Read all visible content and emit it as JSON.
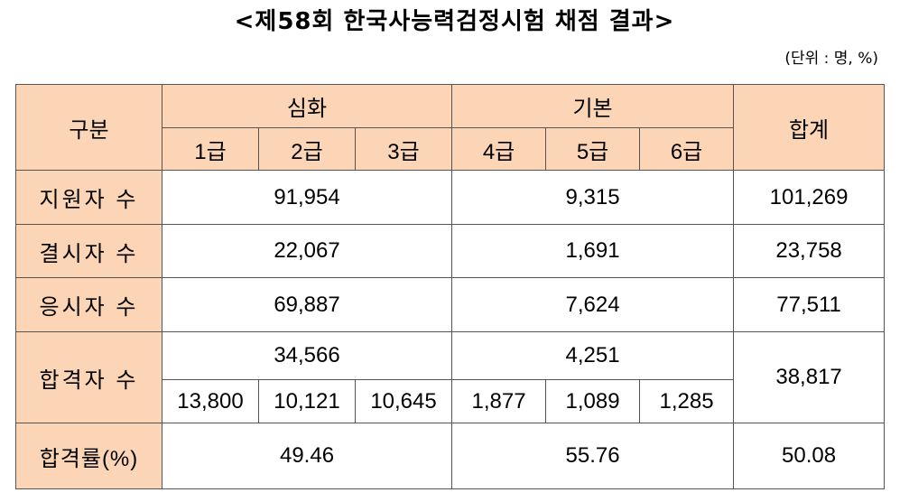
{
  "title": "<제58회 한국사능력검정시험 채점 결과>",
  "unit_note": "(단위 : 명, %)",
  "table": {
    "header": {
      "category": "구분",
      "advanced": "심화",
      "basic": "기본",
      "total": "합계",
      "grades": [
        "1급",
        "2급",
        "3급",
        "4급",
        "5급",
        "6급"
      ]
    },
    "rows": {
      "applicants": {
        "label": "지원자 수",
        "advanced": "91,954",
        "basic": "9,315",
        "total": "101,269"
      },
      "absentees": {
        "label": "결시자 수",
        "advanced": "22,067",
        "basic": "1,691",
        "total": "23,758"
      },
      "examinees": {
        "label": "응시자 수",
        "advanced": "69,887",
        "basic": "7,624",
        "total": "77,511"
      },
      "passers": {
        "label": "합격자 수",
        "advanced": "34,566",
        "basic": "4,251",
        "total": "38,817",
        "by_grade": [
          "13,800",
          "10,121",
          "10,645",
          "1,877",
          "1,089",
          "1,285"
        ]
      },
      "pass_rate": {
        "label": "합격률(%)",
        "advanced": "49.46",
        "basic": "55.76",
        "total": "50.08"
      }
    }
  }
}
